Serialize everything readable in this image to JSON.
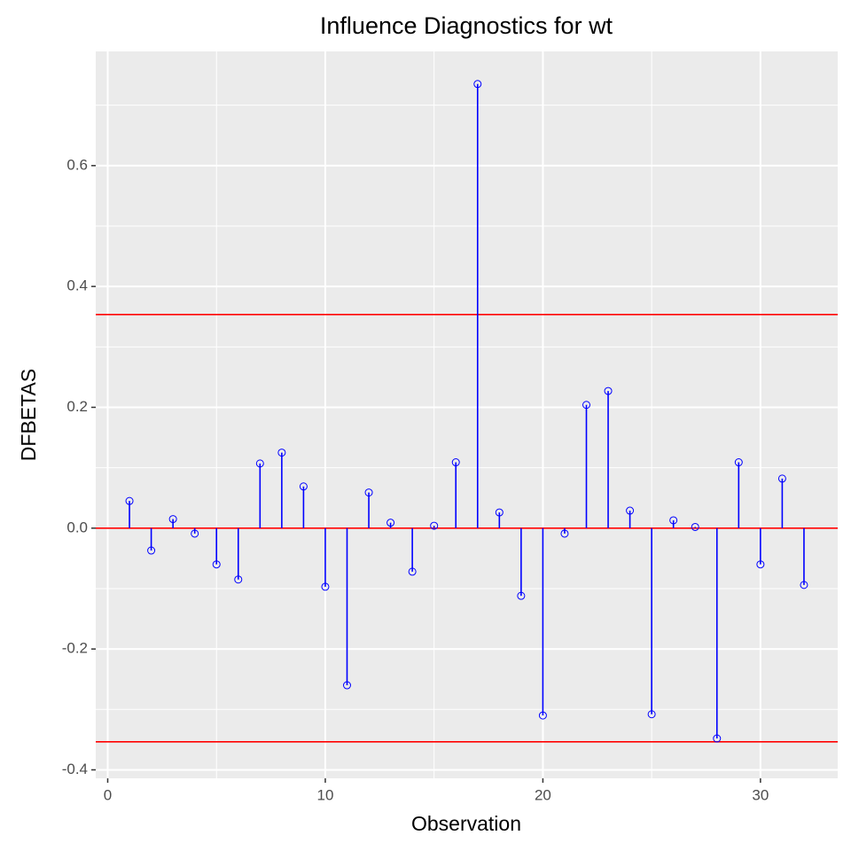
{
  "chart_data": {
    "type": "stem",
    "title": "Influence Diagnostics for wt",
    "x_label": "Observation",
    "y_label": "DFBETAS",
    "x": [
      1,
      2,
      3,
      4,
      5,
      6,
      7,
      8,
      9,
      10,
      11,
      12,
      13,
      14,
      15,
      16,
      17,
      18,
      19,
      20,
      21,
      22,
      23,
      24,
      25,
      26,
      27,
      28,
      29,
      30,
      31,
      32
    ],
    "values": [
      0.045,
      -0.037,
      0.015,
      -0.009,
      -0.06,
      -0.085,
      0.107,
      0.125,
      0.069,
      -0.097,
      -0.26,
      0.059,
      0.009,
      -0.072,
      0.004,
      0.109,
      0.735,
      0.026,
      -0.112,
      -0.31,
      -0.009,
      0.204,
      0.227,
      0.029,
      -0.308,
      0.013,
      0.002,
      -0.348,
      0.109,
      -0.06,
      0.082,
      -0.094
    ],
    "color": "#0000ff",
    "xlim": [
      -0.55,
      33.55
    ],
    "ylim": [
      -0.414,
      0.789
    ],
    "xticks": [
      0,
      10,
      20,
      30
    ],
    "yticks": [
      -0.4,
      -0.2,
      {
        "value": 0,
        "label": "0.0"
      },
      0.2,
      0.4,
      0.6
    ],
    "reference_lines": [
      0,
      0.3536,
      -0.3536
    ],
    "reference_color": "#ff0000",
    "grid": true
  }
}
